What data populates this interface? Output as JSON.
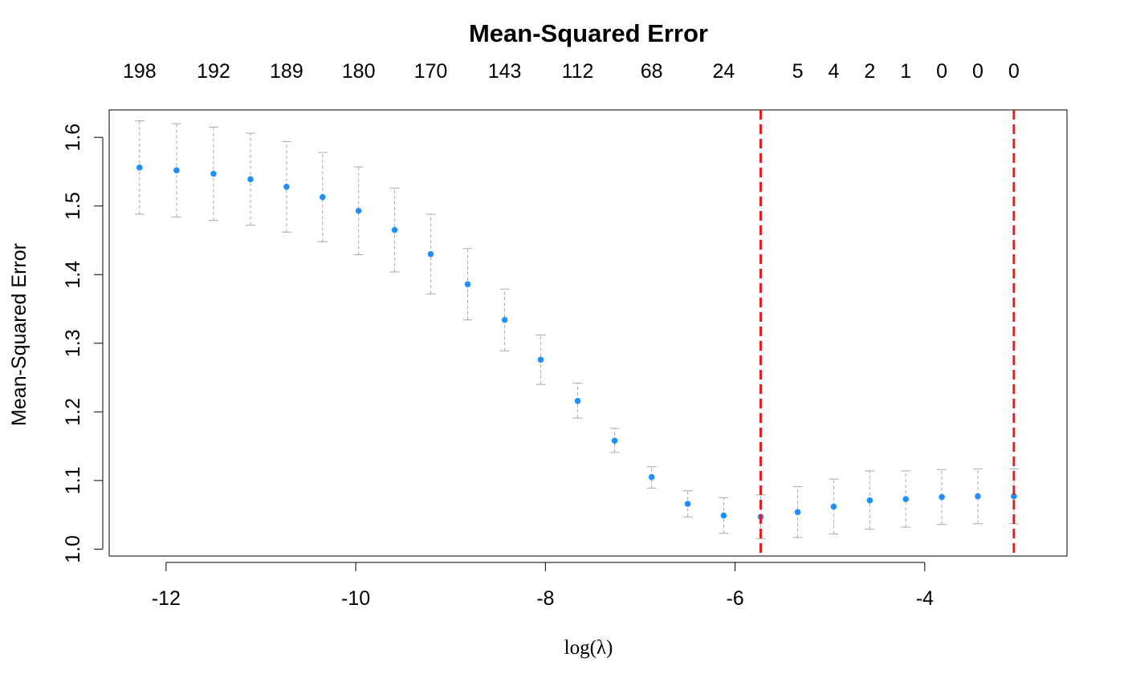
{
  "chart_data": {
    "type": "scatter",
    "title": "Mean-Squared Error",
    "xlabel": "log(λ)",
    "ylabel": "Mean-Squared Error",
    "xlim": [
      -12.6,
      -2.5
    ],
    "ylim": [
      0.99,
      1.64
    ],
    "x_ticks": [
      {
        "value": -12,
        "label": "-12"
      },
      {
        "value": -10,
        "label": "-10"
      },
      {
        "value": -8,
        "label": "-8"
      },
      {
        "value": -6,
        "label": "-6"
      },
      {
        "value": -4,
        "label": "-4"
      }
    ],
    "y_ticks": [
      {
        "value": 1.0,
        "label": "1.0"
      },
      {
        "value": 1.1,
        "label": "1.1"
      },
      {
        "value": 1.2,
        "label": "1.2"
      },
      {
        "value": 1.3,
        "label": "1.3"
      },
      {
        "value": 1.4,
        "label": "1.4"
      },
      {
        "value": 1.5,
        "label": "1.5"
      },
      {
        "value": 1.6,
        "label": "1.6"
      }
    ],
    "top_ticks": [
      {
        "x": -12.28,
        "label": "198"
      },
      {
        "x": -11.5,
        "label": "192"
      },
      {
        "x": -10.73,
        "label": "189"
      },
      {
        "x": -9.97,
        "label": "180"
      },
      {
        "x": -9.21,
        "label": "170"
      },
      {
        "x": -8.43,
        "label": "143"
      },
      {
        "x": -7.66,
        "label": "112"
      },
      {
        "x": -6.88,
        "label": "68"
      },
      {
        "x": -6.12,
        "label": "24"
      },
      {
        "x": -5.34,
        "label": "5"
      },
      {
        "x": -4.96,
        "label": "4"
      },
      {
        "x": -4.58,
        "label": "2"
      },
      {
        "x": -4.2,
        "label": "1"
      },
      {
        "x": -3.82,
        "label": "0"
      },
      {
        "x": -3.44,
        "label": "0"
      },
      {
        "x": -3.06,
        "label": "0"
      }
    ],
    "points": [
      {
        "x": -12.28,
        "y": 1.556,
        "lo": 1.488,
        "hi": 1.624
      },
      {
        "x": -11.89,
        "y": 1.552,
        "lo": 1.484,
        "hi": 1.62
      },
      {
        "x": -11.5,
        "y": 1.547,
        "lo": 1.479,
        "hi": 1.615
      },
      {
        "x": -11.11,
        "y": 1.539,
        "lo": 1.472,
        "hi": 1.606
      },
      {
        "x": -10.73,
        "y": 1.528,
        "lo": 1.462,
        "hi": 1.594
      },
      {
        "x": -10.35,
        "y": 1.513,
        "lo": 1.448,
        "hi": 1.578
      },
      {
        "x": -9.97,
        "y": 1.493,
        "lo": 1.429,
        "hi": 1.557
      },
      {
        "x": -9.59,
        "y": 1.465,
        "lo": 1.404,
        "hi": 1.526
      },
      {
        "x": -9.21,
        "y": 1.43,
        "lo": 1.372,
        "hi": 1.488
      },
      {
        "x": -8.82,
        "y": 1.386,
        "lo": 1.334,
        "hi": 1.438
      },
      {
        "x": -8.43,
        "y": 1.334,
        "lo": 1.289,
        "hi": 1.379
      },
      {
        "x": -8.05,
        "y": 1.276,
        "lo": 1.24,
        "hi": 1.312
      },
      {
        "x": -7.66,
        "y": 1.216,
        "lo": 1.191,
        "hi": 1.242
      },
      {
        "x": -7.27,
        "y": 1.158,
        "lo": 1.141,
        "hi": 1.176
      },
      {
        "x": -6.88,
        "y": 1.105,
        "lo": 1.089,
        "hi": 1.12
      },
      {
        "x": -6.5,
        "y": 1.066,
        "lo": 1.047,
        "hi": 1.085
      },
      {
        "x": -6.12,
        "y": 1.049,
        "lo": 1.023,
        "hi": 1.075
      },
      {
        "x": -5.73,
        "y": 1.047,
        "lo": 1.015,
        "hi": 1.079
      },
      {
        "x": -5.34,
        "y": 1.054,
        "lo": 1.017,
        "hi": 1.091
      },
      {
        "x": -4.96,
        "y": 1.062,
        "lo": 1.022,
        "hi": 1.102
      },
      {
        "x": -4.58,
        "y": 1.071,
        "lo": 1.029,
        "hi": 1.114
      },
      {
        "x": -4.2,
        "y": 1.073,
        "lo": 1.032,
        "hi": 1.114
      },
      {
        "x": -3.82,
        "y": 1.076,
        "lo": 1.036,
        "hi": 1.116
      },
      {
        "x": -3.44,
        "y": 1.077,
        "lo": 1.037,
        "hi": 1.117
      },
      {
        "x": -3.06,
        "y": 1.077,
        "lo": 1.037,
        "hi": 1.117
      }
    ],
    "vlines": [
      -5.73,
      -3.06
    ],
    "colors": {
      "point": "#1E90FF",
      "errorbar": "#A9A9A9",
      "vline": "#E02020",
      "axis": "#000000"
    }
  }
}
